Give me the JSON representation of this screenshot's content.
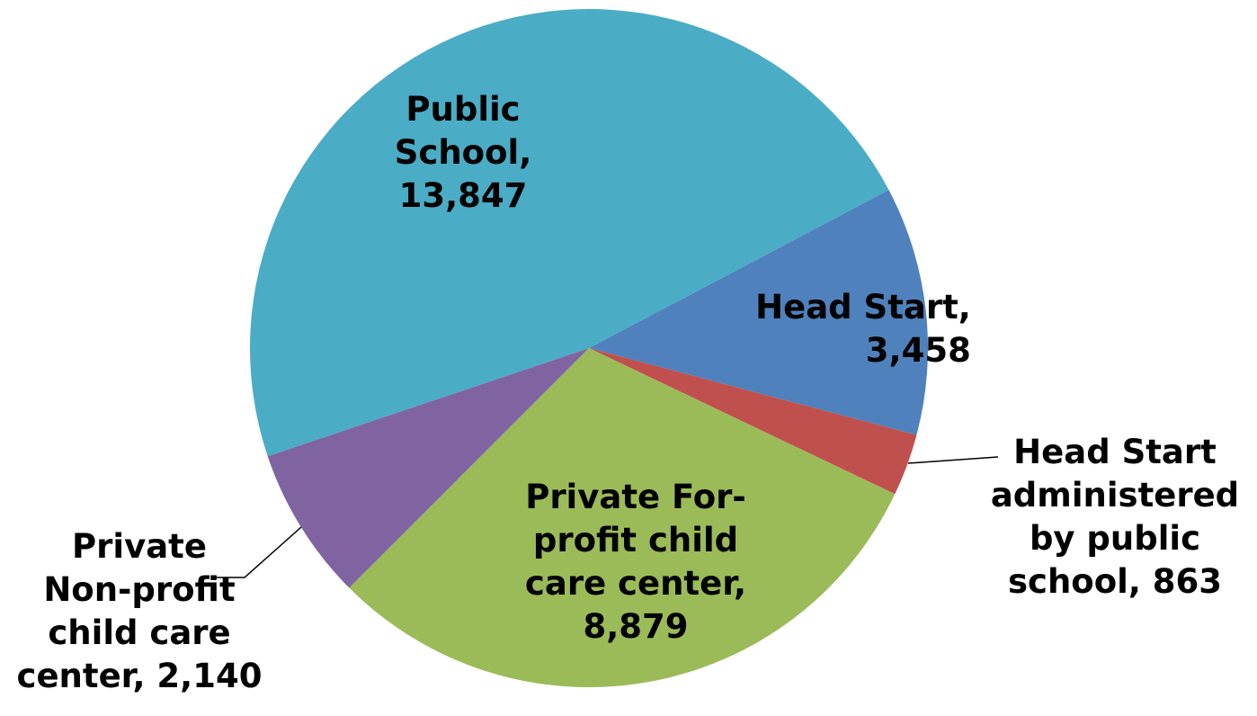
{
  "chart_data": {
    "type": "pie",
    "values": [
      3458,
      863,
      8879,
      2140,
      13847
    ],
    "value_labels": [
      "Head Start,\n3,458",
      "Head Start\nadministered\nby public\nschool, 863",
      "Private For-\nprofit child\ncare center,\n8,879",
      "Private\nNon-profit\nchild care\ncenter, 2,140",
      "Public\nSchool,\n13,847"
    ],
    "colors": [
      "#4f81bd",
      "#c0504d",
      "#9bbb59",
      "#8064a2",
      "#4bacc6"
    ]
  }
}
